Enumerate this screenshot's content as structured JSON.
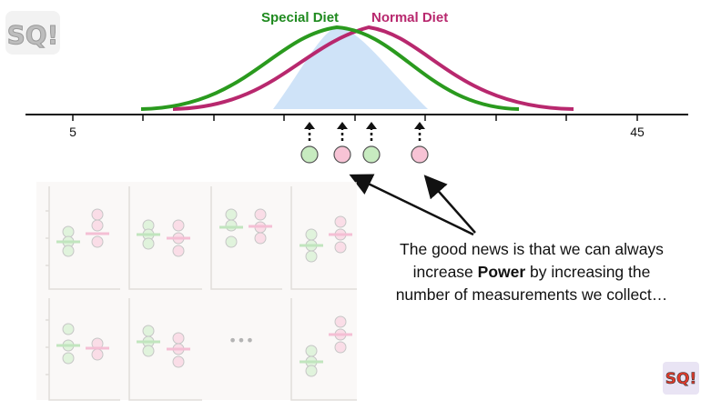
{
  "legend": {
    "special": {
      "label": "Special Diet",
      "color": "#1f8a1f"
    },
    "normal": {
      "label": "Normal Diet",
      "color": "#b8286e"
    }
  },
  "axis": {
    "tick_labels": [
      "5",
      "45"
    ]
  },
  "caption": {
    "line1": "The good news is that we can always",
    "line2_pre": "increase ",
    "line2_bold": "Power",
    "line2_post": " by increasing the",
    "line3": "number of measurements we collect…"
  },
  "grid": {
    "ellipsis": "•••"
  },
  "logo": {
    "text": "SQ!"
  },
  "colors": {
    "overlap_fill": "#cfe3f8",
    "green_dot": "#c7ebc0",
    "pink_dot": "#f7c3d5",
    "panel_bg": "#f6f3f1"
  }
}
